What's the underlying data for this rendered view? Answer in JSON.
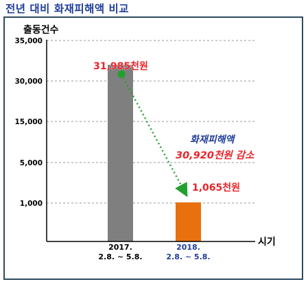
{
  "page": {
    "title": "전년 대비 화재피해액 비교"
  },
  "chart_data": {
    "type": "bar",
    "title": "전년 대비 화재피해액 비교",
    "ylabel": "출동건수",
    "xlabel": "시기",
    "y_axis_type": "categorical-broken",
    "ytick_labels": [
      "1,000",
      "5,000",
      "15,000",
      "30,000",
      "35,000"
    ],
    "categories": [
      {
        "line1": "2017.",
        "line2": "2.8. ~ 5.8."
      },
      {
        "line1": "2018.",
        "line2": "2.8. ~ 5.8."
      }
    ],
    "series": [
      {
        "values": [
          31985,
          1065
        ],
        "unit": "천원"
      }
    ],
    "data_labels": [
      "31,985천원",
      "1,065천원"
    ],
    "colors": {
      "bar_2017": "#7f7f7f",
      "bar_2018": "#e8700e",
      "label_red": "#e8252a",
      "annotation_blue": "#1f3d99",
      "trend_arrow": "#22a02e",
      "grid": "#9a9a9a",
      "title": "#1f3d99",
      "category_2018": "#1f3d99"
    },
    "annotation": {
      "line1": "화재피해액",
      "line2": "30,920천원 감소"
    },
    "gridlines": "dashed horizontal",
    "legend": "none"
  }
}
